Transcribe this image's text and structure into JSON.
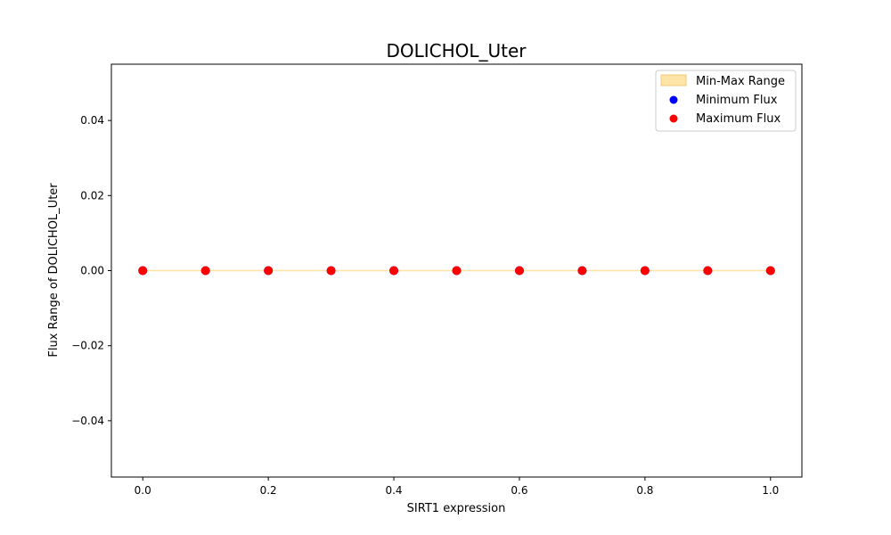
{
  "chart_data": {
    "type": "scatter",
    "title": "DOLICHOL_Uter",
    "xlabel": "SIRT1 expression",
    "ylabel": "Flux Range of DOLICHOL_Uter",
    "xlim": [
      -0.05,
      1.05
    ],
    "ylim": [
      -0.055,
      0.055
    ],
    "xticks": [
      0.0,
      0.2,
      0.4,
      0.6,
      0.8,
      1.0
    ],
    "xtick_labels": [
      "0.0",
      "0.2",
      "0.4",
      "0.6",
      "0.8",
      "1.0"
    ],
    "yticks": [
      -0.04,
      -0.02,
      0.0,
      0.02,
      0.04
    ],
    "ytick_labels": [
      "−0.04",
      "−0.02",
      "0.00",
      "0.02",
      "0.04"
    ],
    "grid": false,
    "legend_position": "top-right",
    "x": [
      0.0,
      0.1,
      0.2,
      0.3,
      0.4,
      0.5,
      0.6,
      0.7,
      0.8,
      0.9,
      1.0
    ],
    "range_band": {
      "name": "Min-Max Range",
      "color": "#ffe4a8",
      "lower": [
        0,
        0,
        0,
        0,
        0,
        0,
        0,
        0,
        0,
        0,
        0
      ],
      "upper": [
        0,
        0,
        0,
        0,
        0,
        0,
        0,
        0,
        0,
        0,
        0
      ]
    },
    "series": [
      {
        "name": "Minimum Flux",
        "color": "#0000ff",
        "values": [
          0,
          0,
          0,
          0,
          0,
          0,
          0,
          0,
          0,
          0,
          0
        ]
      },
      {
        "name": "Maximum Flux",
        "color": "#ff0000",
        "values": [
          0,
          0,
          0,
          0,
          0,
          0,
          0,
          0,
          0,
          0,
          0
        ]
      }
    ]
  }
}
